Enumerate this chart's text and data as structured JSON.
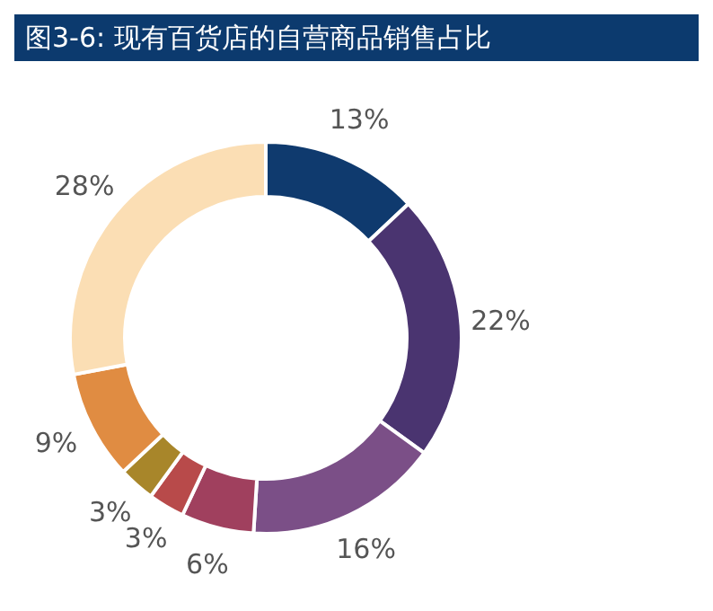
{
  "chart_data": {
    "type": "donut",
    "title": "图3-6: 现有百货店的自营商品销售占比",
    "categories": [
      null,
      null,
      null,
      null,
      null,
      null,
      null,
      null
    ],
    "values": [
      13,
      22,
      16,
      6,
      3,
      3,
      9,
      28
    ],
    "value_labels": [
      "13%",
      "22%",
      "16%",
      "6%",
      "3%",
      "3%",
      "9%",
      "28%"
    ],
    "colors": [
      "#0f3a6e",
      "#4a3470",
      "#7b4f87",
      "#a0405e",
      "#b84a4a",
      "#a8862a",
      "#e08c42",
      "#fbdeb4"
    ],
    "legend": false
  }
}
